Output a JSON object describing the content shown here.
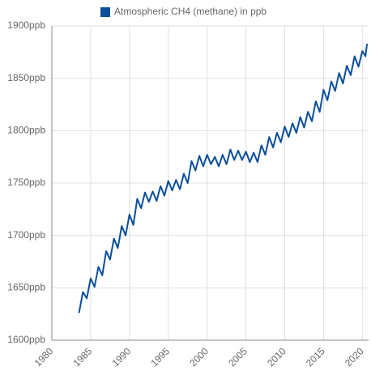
{
  "chart_data": {
    "type": "line",
    "series": [
      {
        "name": "Atmospheric CH4 (methane) in ppb",
        "color": "#0b4f9c",
        "x": [
          1983.5,
          1984,
          1984.5,
          1985,
          1985.5,
          1986,
          1986.5,
          1987,
          1987.5,
          1988,
          1988.5,
          1989,
          1989.5,
          1990,
          1990.5,
          1991,
          1991.5,
          1992,
          1992.5,
          1993,
          1993.5,
          1994,
          1994.5,
          1995,
          1995.5,
          1996,
          1996.5,
          1997,
          1997.5,
          1998,
          1998.5,
          1999,
          1999.5,
          2000,
          2000.5,
          2001,
          2001.5,
          2002,
          2002.5,
          2003,
          2003.5,
          2004,
          2004.5,
          2005,
          2005.5,
          2006,
          2006.5,
          2007,
          2007.5,
          2008,
          2008.5,
          2009,
          2009.5,
          2010,
          2010.5,
          2011,
          2011.5,
          2012,
          2012.5,
          2013,
          2013.5,
          2014,
          2014.5,
          2015,
          2015.5,
          2016,
          2016.5,
          2017,
          2017.5,
          2018,
          2018.5,
          2019,
          2019.5,
          2020,
          2020.4,
          2020.6
        ],
        "values": [
          1626,
          1646,
          1640,
          1659,
          1651,
          1670,
          1662,
          1685,
          1677,
          1697,
          1688,
          1709,
          1700,
          1720,
          1710,
          1735,
          1726,
          1741,
          1732,
          1742,
          1733,
          1747,
          1738,
          1752,
          1743,
          1753,
          1744,
          1759,
          1750,
          1771,
          1762,
          1776,
          1766,
          1777,
          1768,
          1775,
          1766,
          1777,
          1768,
          1782,
          1772,
          1781,
          1772,
          1780,
          1770,
          1779,
          1770,
          1786,
          1777,
          1794,
          1784,
          1798,
          1789,
          1804,
          1794,
          1807,
          1798,
          1813,
          1803,
          1818,
          1809,
          1828,
          1818,
          1839,
          1829,
          1847,
          1838,
          1855,
          1845,
          1862,
          1853,
          1871,
          1861,
          1876,
          1871,
          1883
        ]
      }
    ],
    "xlim": [
      1980,
      2020.8
    ],
    "xticks": [
      1980,
      1985,
      1990,
      1995,
      2000,
      2005,
      2010,
      2015,
      2020
    ],
    "ylim": [
      1600,
      1900
    ],
    "yticks": [
      {
        "value": 1600,
        "label": "1600ppb"
      },
      {
        "value": 1650,
        "label": "1650ppb"
      },
      {
        "value": 1700,
        "label": "1700ppb"
      },
      {
        "value": 1750,
        "label": "1750ppb"
      },
      {
        "value": 1800,
        "label": "1800ppb"
      },
      {
        "value": 1850,
        "label": "1850ppb"
      },
      {
        "value": 1900,
        "label": "1900ppb"
      }
    ],
    "grid": true
  }
}
